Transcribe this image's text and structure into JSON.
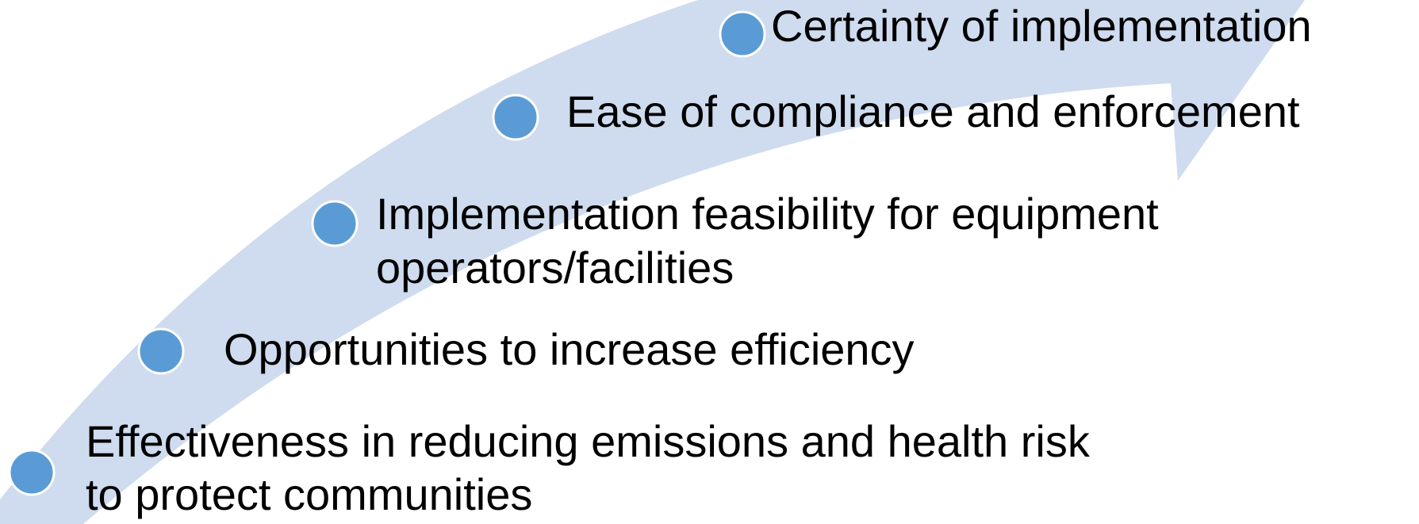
{
  "items": [
    {
      "lines": [
        "Certainty of implementation"
      ]
    },
    {
      "lines": [
        "Ease of compliance and enforcement"
      ]
    },
    {
      "lines": [
        "Implementation feasibility for equipment",
        "operators/facilities"
      ]
    },
    {
      "lines": [
        "Opportunities to increase efficiency"
      ]
    },
    {
      "lines": [
        "Effectiveness in reducing emissions and health risk",
        "to protect communities"
      ]
    }
  ]
}
